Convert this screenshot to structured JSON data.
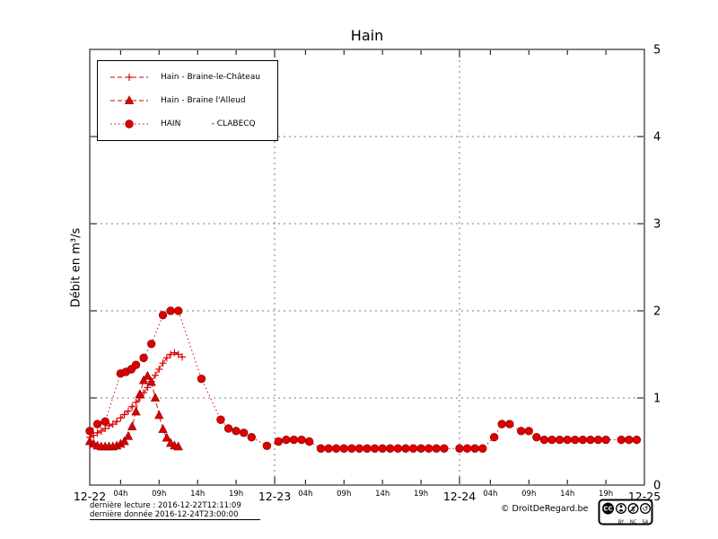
{
  "footer": {
    "last_reading": "dernière lecture : 2016-12-22T12:11:09",
    "last_data": "dernière donnée  2016-12-24T23:00:00",
    "copyright": "© DroitDeRegard.be",
    "license": "CC BY NC SA"
  },
  "colors": {
    "series_red": "#dd0000",
    "marker_edge": "#990000",
    "grid": "#7a7a7a",
    "axis": "#000000"
  },
  "chart_data": {
    "type": "line",
    "title": "Hain",
    "xlabel": "",
    "ylabel": "Débit en m³/s",
    "ylim": [
      0,
      5
    ],
    "x_unit": "hours since 2016-12-22 00:00",
    "xlim_hours": [
      0,
      72
    ],
    "grid": true,
    "legend_position": "top-left",
    "y_ticks": [
      0,
      1,
      2,
      3,
      4,
      5
    ],
    "x_major_ticks": [
      {
        "hour": 0,
        "label": "12-22"
      },
      {
        "hour": 24,
        "label": "12-23"
      },
      {
        "hour": 48,
        "label": "12-24"
      },
      {
        "hour": 72,
        "label": "12-25"
      }
    ],
    "x_minor_ticks": [
      {
        "hour": 4,
        "label": "04h"
      },
      {
        "hour": 9,
        "label": "09h"
      },
      {
        "hour": 14,
        "label": "14h"
      },
      {
        "hour": 19,
        "label": "19h"
      },
      {
        "hour": 28,
        "label": "04h"
      },
      {
        "hour": 33,
        "label": "09h"
      },
      {
        "hour": 38,
        "label": "14h"
      },
      {
        "hour": 43,
        "label": "19h"
      },
      {
        "hour": 52,
        "label": "04h"
      },
      {
        "hour": 57,
        "label": "09h"
      },
      {
        "hour": 62,
        "label": "14h"
      },
      {
        "hour": 67,
        "label": "19h"
      }
    ],
    "series": [
      {
        "name": "Hain - Braine-le-Château",
        "marker": "plus",
        "line": "dashed",
        "color": "#dd0000",
        "edge_color": "#990000",
        "points": [
          [
            0,
            0.55
          ],
          [
            0.5,
            0.57
          ],
          [
            1,
            0.6
          ],
          [
            1.5,
            0.62
          ],
          [
            2,
            0.65
          ],
          [
            2.5,
            0.68
          ],
          [
            3,
            0.7
          ],
          [
            3.5,
            0.73
          ],
          [
            4,
            0.77
          ],
          [
            4.5,
            0.81
          ],
          [
            5,
            0.85
          ],
          [
            5.5,
            0.9
          ],
          [
            6,
            0.95
          ],
          [
            6.5,
            1.0
          ],
          [
            7,
            1.06
          ],
          [
            7.5,
            1.12
          ],
          [
            8,
            1.19
          ],
          [
            8.5,
            1.26
          ],
          [
            9,
            1.33
          ],
          [
            9.5,
            1.4
          ],
          [
            10,
            1.46
          ],
          [
            10.5,
            1.5
          ],
          [
            11,
            1.52
          ],
          [
            11.5,
            1.5
          ],
          [
            12,
            1.47
          ]
        ]
      },
      {
        "name": "Hain - Braine l'Alleud",
        "marker": "triangle",
        "line": "dashed",
        "color": "#dd0000",
        "edge_color": "#990000",
        "points": [
          [
            0,
            0.5
          ],
          [
            0.5,
            0.47
          ],
          [
            1,
            0.45
          ],
          [
            1.5,
            0.44
          ],
          [
            2,
            0.44
          ],
          [
            2.5,
            0.44
          ],
          [
            3,
            0.44
          ],
          [
            3.5,
            0.45
          ],
          [
            4,
            0.47
          ],
          [
            4.5,
            0.5
          ],
          [
            5,
            0.56
          ],
          [
            5.5,
            0.67
          ],
          [
            6,
            0.84
          ],
          [
            6.5,
            1.04
          ],
          [
            7,
            1.2
          ],
          [
            7.5,
            1.25
          ],
          [
            8,
            1.18
          ],
          [
            8.5,
            1.0
          ],
          [
            9,
            0.8
          ],
          [
            9.5,
            0.64
          ],
          [
            10,
            0.54
          ],
          [
            10.5,
            0.48
          ],
          [
            11,
            0.45
          ],
          [
            11.5,
            0.44
          ]
        ]
      },
      {
        "name": "HAIN            - CLABECQ",
        "marker": "circle",
        "line": "dotted",
        "color": "#dd0000",
        "edge_color": "#990000",
        "points": [
          [
            0,
            0.62
          ],
          [
            1,
            0.7
          ],
          [
            2,
            0.73
          ],
          [
            4,
            1.28
          ],
          [
            4.7,
            1.3
          ],
          [
            5.4,
            1.33
          ],
          [
            6,
            1.38
          ],
          [
            7,
            1.46
          ],
          [
            8,
            1.62
          ],
          [
            9.5,
            1.95
          ],
          [
            10.5,
            2.0
          ],
          [
            11.5,
            2.0
          ],
          [
            14.5,
            1.22
          ],
          [
            17,
            0.75
          ],
          [
            18,
            0.65
          ],
          [
            19,
            0.62
          ],
          [
            20,
            0.6
          ],
          [
            21,
            0.55
          ],
          [
            23,
            0.45
          ],
          [
            24.5,
            0.5
          ],
          [
            25.5,
            0.52
          ],
          [
            26.5,
            0.52
          ],
          [
            27.5,
            0.52
          ],
          [
            28.5,
            0.5
          ],
          [
            30,
            0.42
          ],
          [
            31,
            0.42
          ],
          [
            32,
            0.42
          ],
          [
            33,
            0.42
          ],
          [
            34,
            0.42
          ],
          [
            35,
            0.42
          ],
          [
            36,
            0.42
          ],
          [
            37,
            0.42
          ],
          [
            38,
            0.42
          ],
          [
            39,
            0.42
          ],
          [
            40,
            0.42
          ],
          [
            41,
            0.42
          ],
          [
            42,
            0.42
          ],
          [
            43,
            0.42
          ],
          [
            44,
            0.42
          ],
          [
            45,
            0.42
          ],
          [
            46,
            0.42
          ],
          [
            48,
            0.42
          ],
          [
            49,
            0.42
          ],
          [
            50,
            0.42
          ],
          [
            51,
            0.42
          ],
          [
            52.5,
            0.55
          ],
          [
            53.5,
            0.7
          ],
          [
            54.5,
            0.7
          ],
          [
            56,
            0.62
          ],
          [
            57,
            0.62
          ],
          [
            58,
            0.55
          ],
          [
            59,
            0.52
          ],
          [
            60,
            0.52
          ],
          [
            61,
            0.52
          ],
          [
            62,
            0.52
          ],
          [
            63,
            0.52
          ],
          [
            64,
            0.52
          ],
          [
            65,
            0.52
          ],
          [
            66,
            0.52
          ],
          [
            67,
            0.52
          ],
          [
            69,
            0.52
          ],
          [
            70,
            0.52
          ],
          [
            71,
            0.52
          ]
        ]
      }
    ]
  }
}
